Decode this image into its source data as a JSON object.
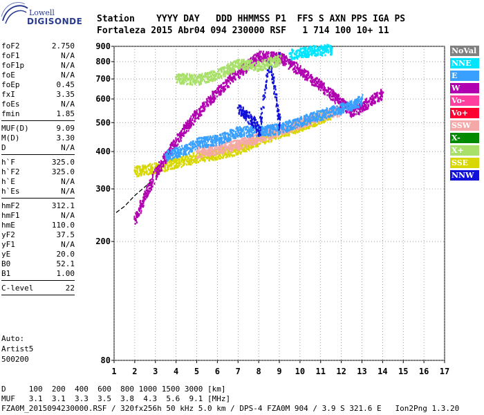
{
  "logo": {
    "line1": "Lowell",
    "line2": "DIGISONDE"
  },
  "header": {
    "labels": "Station    YYYY DAY   DDD HHMMSS P1  FFS S AXN PPS IGA PS",
    "values": "Fortaleza 2015 Abr04 094 230000 RSF   1 714 100 10+ 11"
  },
  "params_1": [
    {
      "k": "foF2",
      "v": "2.750"
    },
    {
      "k": "foF1",
      "v": "N/A"
    },
    {
      "k": "foF1p",
      "v": "N/A"
    },
    {
      "k": "foE",
      "v": "N/A"
    },
    {
      "k": "foEp",
      "v": "0.45"
    },
    {
      "k": "fxI",
      "v": "3.35"
    },
    {
      "k": "foEs",
      "v": "N/A"
    },
    {
      "k": "fmin",
      "v": "1.85"
    }
  ],
  "params_2": [
    {
      "k": "MUF(D)",
      "v": "9.09"
    },
    {
      "k": "M(D)",
      "v": "3.30"
    },
    {
      "k": "D",
      "v": "N/A"
    }
  ],
  "params_3": [
    {
      "k": "h`F",
      "v": "325.0"
    },
    {
      "k": "h`F2",
      "v": "325.0"
    },
    {
      "k": "h`E",
      "v": "N/A"
    },
    {
      "k": "h`Es",
      "v": "N/A"
    }
  ],
  "params_4": [
    {
      "k": "hmF2",
      "v": "312.1"
    },
    {
      "k": "hmF1",
      "v": "N/A"
    },
    {
      "k": "hmE",
      "v": "110.0"
    },
    {
      "k": "yF2",
      "v": "37.5"
    },
    {
      "k": "yF1",
      "v": "N/A"
    },
    {
      "k": "yE",
      "v": "20.0"
    },
    {
      "k": "B0",
      "v": "52.1"
    },
    {
      "k": "B1",
      "v": "1.00"
    }
  ],
  "params_5": [
    {
      "k": "C-level",
      "v": "22"
    }
  ],
  "extra": {
    "line1": "Auto:",
    "line2": "Artist5",
    "line3": "500200"
  },
  "legend": [
    {
      "label": "NoVal",
      "color": "#808080"
    },
    {
      "label": "NNE",
      "color": "#00e5ff"
    },
    {
      "label": "E",
      "color": "#3aa0ff"
    },
    {
      "label": "W",
      "color": "#b000b0"
    },
    {
      "label": "Vo-",
      "color": "#ff3fa0"
    },
    {
      "label": "Vo+",
      "color": "#ff0030"
    },
    {
      "label": "SSW",
      "color": "#f4a8a8"
    },
    {
      "label": "X-",
      "color": "#008a00"
    },
    {
      "label": "X+",
      "color": "#a8e06a"
    },
    {
      "label": "SSE",
      "color": "#d8d800"
    },
    {
      "label": "NNW",
      "color": "#1010d8"
    }
  ],
  "bottom": {
    "line1": "D     100  200  400  600  800 1000 1500 3000 [km]",
    "line2": "MUF   3.1  3.1  3.3  3.5  3.8  4.3  5.6  9.1 [MHz]",
    "line3": "FZA0M_2015094230000.RSF / 320fx256h 50 kHz 5.0 km / DPS-4 FZA0M 904 / 3.9 S 321.6 E   Ion2Png 1.3.20"
  },
  "chart_data": {
    "type": "scatter",
    "title": "",
    "xlabel": "",
    "ylabel": "",
    "xlim": [
      1,
      17
    ],
    "ylim": [
      80,
      900
    ],
    "y_scale": "log",
    "x_ticks": [
      1,
      2,
      3,
      4,
      5,
      6,
      7,
      8,
      9,
      10,
      11,
      12,
      13,
      14,
      15,
      16,
      17
    ],
    "y_ticks": [
      80,
      200,
      300,
      400,
      500,
      600,
      700,
      800,
      900
    ],
    "series": [
      {
        "name": "SSE",
        "values": [
          [
            2.0,
            345
          ],
          [
            3.0,
            355
          ],
          [
            4.0,
            370
          ],
          [
            5.0,
            385
          ],
          [
            6.0,
            395
          ],
          [
            7.0,
            410
          ],
          [
            8.0,
            440
          ],
          [
            9.0,
            465
          ],
          [
            10.0,
            490
          ],
          [
            11.0,
            520
          ],
          [
            11.5,
            540
          ]
        ]
      },
      {
        "name": "SSW",
        "values": [
          [
            5.0,
            400
          ],
          [
            6.0,
            410
          ],
          [
            7.0,
            425
          ],
          [
            8.0,
            450
          ],
          [
            9.0,
            475
          ],
          [
            10.0,
            500
          ],
          [
            11.0,
            530
          ],
          [
            12.0,
            555
          ]
        ]
      },
      {
        "name": "W",
        "values": [
          [
            12.5,
            545
          ],
          [
            13.0,
            570
          ],
          [
            13.5,
            600
          ],
          [
            14.0,
            630
          ],
          [
            2.0,
            238
          ],
          [
            8.0,
            840
          ],
          [
            9.0,
            830
          ]
        ]
      },
      {
        "name": "E",
        "values": [
          [
            3.5,
            390
          ],
          [
            4.5,
            410
          ],
          [
            5.0,
            430
          ],
          [
            6.0,
            440
          ],
          [
            7.0,
            470
          ],
          [
            8.0,
            470
          ],
          [
            9.0,
            480
          ],
          [
            12.5,
            575
          ],
          [
            13.0,
            600
          ]
        ]
      },
      {
        "name": "NNW",
        "values": [
          [
            7.0,
            560
          ],
          [
            7.8,
            500
          ],
          [
            8.0,
            470
          ],
          [
            9.0,
            490
          ],
          [
            8.5,
            800
          ],
          [
            9.0,
            850
          ]
        ]
      },
      {
        "name": "NNE",
        "values": [
          [
            9.5,
            850
          ],
          [
            10.5,
            875
          ],
          [
            11.5,
            885
          ]
        ]
      },
      {
        "name": "X+",
        "values": [
          [
            4.0,
            710
          ],
          [
            5.0,
            700
          ],
          [
            6.0,
            730
          ],
          [
            7.0,
            790
          ],
          [
            8.0,
            780
          ],
          [
            9.0,
            815
          ]
        ]
      }
    ],
    "fitted_profile": [
      [
        1.1,
        250
      ],
      [
        1.5,
        262
      ],
      [
        2.0,
        285
      ],
      [
        2.5,
        305
      ],
      [
        2.75,
        316
      ]
    ]
  }
}
